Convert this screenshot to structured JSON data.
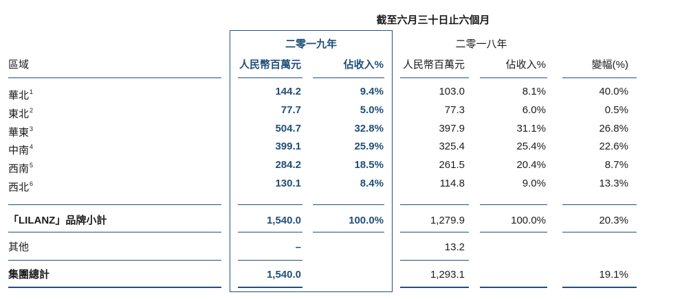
{
  "header": {
    "period": "截至六月三十日止六個月",
    "year_2019": "二零一九年",
    "year_2018": "二零一八年",
    "col_region": "區域",
    "col_rmb_2019": "人民幣百萬元",
    "col_pct_2019": "佔收入%",
    "col_rmb_2018": "人民幣百萬元",
    "col_pct_2018": "佔收入%",
    "col_change": "變幅(%)"
  },
  "rows": [
    {
      "region": "華北",
      "note": "1",
      "rmb_2019": "144.2",
      "pct_2019": "9.4%",
      "rmb_2018": "103.0",
      "pct_2018": "8.1%",
      "change": "40.0%"
    },
    {
      "region": "東北",
      "note": "2",
      "rmb_2019": "77.7",
      "pct_2019": "5.0%",
      "rmb_2018": "77.3",
      "pct_2018": "6.0%",
      "change": "0.5%"
    },
    {
      "region": "華東",
      "note": "3",
      "rmb_2019": "504.7",
      "pct_2019": "32.8%",
      "rmb_2018": "397.9",
      "pct_2018": "31.1%",
      "change": "26.8%"
    },
    {
      "region": "中南",
      "note": "4",
      "rmb_2019": "399.1",
      "pct_2019": "25.9%",
      "rmb_2018": "325.4",
      "pct_2018": "25.4%",
      "change": "22.6%"
    },
    {
      "region": "西南",
      "note": "5",
      "rmb_2019": "284.2",
      "pct_2019": "18.5%",
      "rmb_2018": "261.5",
      "pct_2018": "20.4%",
      "change": "8.7%"
    },
    {
      "region": "西北",
      "note": "6",
      "rmb_2019": "130.1",
      "pct_2019": "8.4%",
      "rmb_2018": "114.8",
      "pct_2018": "9.0%",
      "change": "13.3%"
    }
  ],
  "subtotal": {
    "label": "「LILANZ」品牌小計",
    "rmb_2019": "1,540.0",
    "pct_2019": "100.0%",
    "rmb_2018": "1,279.9",
    "pct_2018": "100.0%",
    "change": "20.3%"
  },
  "others": {
    "label": "其他",
    "rmb_2019": "–",
    "rmb_2018": "13.2"
  },
  "total": {
    "label": "集團總計",
    "rmb_2019": "1,540.0",
    "rmb_2018": "1,293.1",
    "change": "19.1%"
  },
  "colors": {
    "accent": "#1f4e79"
  }
}
